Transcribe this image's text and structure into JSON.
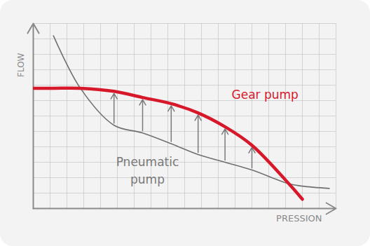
{
  "chart_data": {
    "type": "line",
    "x_label": "PRESSION",
    "y_label": "FLOW",
    "x": [
      0,
      1.2,
      2.8,
      4.8,
      6.5,
      8.2,
      9.8,
      11.4,
      13,
      15.2,
      16,
      17.6
    ],
    "series": [
      {
        "name": "Gear pump",
        "color": "#d7182a",
        "values": [
          7.8,
          7.8,
          7.8,
          7.6,
          7.2,
          6.8,
          6.2,
          5.3,
          4.1,
          1.6,
          0.6,
          null
        ]
      },
      {
        "name": "Pneumatic pump",
        "color": "#707070",
        "values": [
          null,
          11.2,
          7.8,
          5.4,
          4.9,
          4.2,
          3.5,
          3.0,
          2.5,
          1.6,
          1.45,
          1.3
        ]
      }
    ],
    "xlim": [
      0,
      18
    ],
    "xticks": [
      0,
      1,
      2,
      3,
      4,
      5,
      6,
      7,
      8,
      9,
      10,
      11,
      12,
      13,
      14,
      15,
      16,
      17,
      18
    ],
    "ylim": [
      0,
      12
    ],
    "yticks": [
      0,
      1,
      2,
      3,
      4,
      5,
      6,
      7,
      8,
      9,
      10,
      11,
      12
    ],
    "grid": true,
    "tick_labels": false
  }
}
